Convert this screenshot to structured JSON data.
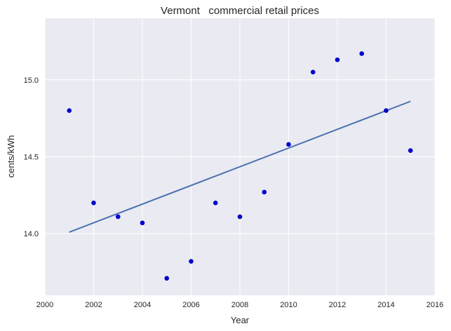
{
  "chart_data": {
    "type": "scatter",
    "title": "Vermont   commercial retail prices",
    "xlabel": "Year",
    "ylabel": "cents/kWh",
    "xlim": [
      2000,
      2016
    ],
    "ylim": [
      13.6,
      15.4
    ],
    "xticks": [
      "2000",
      "2002",
      "2004",
      "2006",
      "2008",
      "2010",
      "2012",
      "2014",
      "2016"
    ],
    "yticks": [
      "14.0",
      "14.5",
      "15.0"
    ],
    "grid": true,
    "legend": "none",
    "series": [
      {
        "type": "scatter",
        "x": [
          2001,
          2002,
          2003,
          2004,
          2005,
          2006,
          2007,
          2008,
          2009,
          2010,
          2011,
          2012,
          2013,
          2014,
          2015
        ],
        "y": [
          14.8,
          14.2,
          14.11,
          14.07,
          13.71,
          13.82,
          14.2,
          14.11,
          14.27,
          14.58,
          15.05,
          15.13,
          15.17,
          14.8,
          14.54
        ]
      },
      {
        "type": "line",
        "x": [
          2001,
          2015
        ],
        "y": [
          14.01,
          14.86
        ]
      }
    ],
    "colors": {
      "background": "#eaeaf2",
      "grid": "#ffffff",
      "points": "#0000cc",
      "trend": "#4c72b0"
    }
  }
}
